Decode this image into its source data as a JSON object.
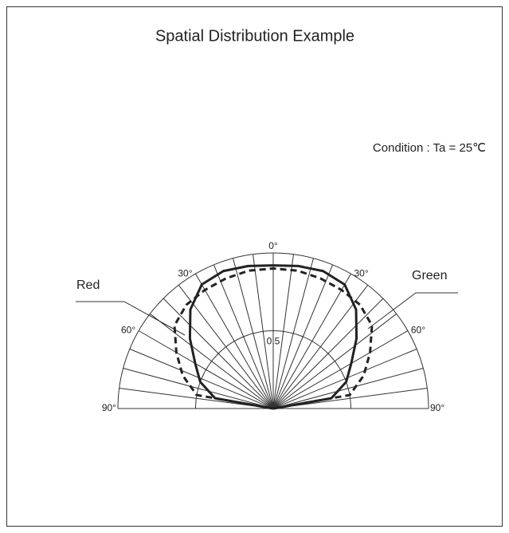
{
  "chart_data": {
    "type": "polar",
    "title": "Spatial Distribution Example",
    "annotation": "Condition : Ta = 25℃",
    "x": [
      -90,
      -80,
      -70,
      -60,
      -50,
      -40,
      -30,
      -20,
      -10,
      0,
      10,
      20,
      30,
      40,
      50,
      60,
      70,
      80,
      90
    ],
    "series": [
      {
        "name": "Red",
        "color": "#222",
        "dashed": true,
        "values": [
          0,
          0.5,
          0.62,
          0.72,
          0.83,
          0.87,
          0.88,
          0.89,
          0.9,
          0.9,
          0.9,
          0.89,
          0.88,
          0.87,
          0.83,
          0.72,
          0.62,
          0.5,
          0
        ]
      },
      {
        "name": "Green",
        "color": "#222",
        "dashed": false,
        "values": [
          0,
          0.38,
          0.5,
          0.58,
          0.7,
          0.83,
          0.92,
          0.94,
          0.93,
          0.92,
          0.93,
          0.94,
          0.92,
          0.83,
          0.7,
          0.58,
          0.5,
          0.38,
          0
        ]
      }
    ],
    "rlim": [
      0,
      1
    ],
    "rticks": [
      {
        "value": 0.5,
        "label": "0.5"
      }
    ],
    "xticks": [
      {
        "value": -90,
        "label": "90°"
      },
      {
        "value": -60,
        "label": "60°"
      },
      {
        "value": -30,
        "label": "30°"
      },
      {
        "value": 0,
        "label": "0°"
      },
      {
        "value": 30,
        "label": "30°"
      },
      {
        "value": 60,
        "label": "60°"
      },
      {
        "value": 90,
        "label": "90°"
      }
    ]
  }
}
